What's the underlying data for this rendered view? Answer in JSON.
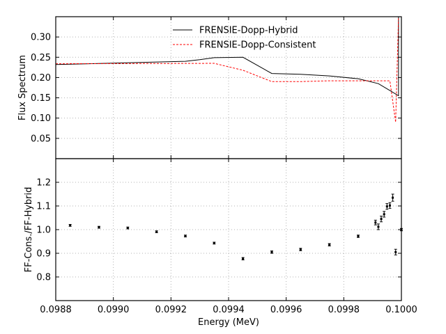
{
  "chart_data": [
    {
      "type": "line",
      "ylabel": "Flux Spectrum",
      "xlim": [
        0.0988,
        0.1
      ],
      "ylim": [
        0.0,
        0.35
      ],
      "yticks": [
        0.05,
        0.1,
        0.15,
        0.2,
        0.25,
        0.3
      ],
      "ytick_labels": [
        "0.05",
        "0.10",
        "0.15",
        "0.20",
        "0.25",
        "0.30"
      ],
      "grid": true,
      "legend_position": "top-center",
      "series": [
        {
          "name": "FRENSIE-Dopp-Hybrid",
          "color": "#000000",
          "style": "solid",
          "x": [
            0.0988,
            0.09925,
            0.0993,
            0.09935,
            0.09945,
            0.09955,
            0.09965,
            0.09975,
            0.09985,
            0.09992,
            0.09996,
            0.09999,
            0.09999,
            0.1
          ],
          "y": [
            0.232,
            0.24,
            0.244,
            0.249,
            0.25,
            0.21,
            0.208,
            0.204,
            0.197,
            0.185,
            0.168,
            0.155,
            0.35,
            0.35
          ]
        },
        {
          "name": "FRENSIE-Dopp-Consistent",
          "color": "#ff0000",
          "style": "dashed",
          "x": [
            0.0988,
            0.09935,
            0.09945,
            0.09955,
            0.09965,
            0.09975,
            0.09985,
            0.09992,
            0.09996,
            0.09998,
            0.09999,
            0.1
          ],
          "y": [
            0.234,
            0.235,
            0.218,
            0.19,
            0.19,
            0.192,
            0.192,
            0.192,
            0.192,
            0.09,
            0.35,
            0.35
          ]
        }
      ]
    },
    {
      "type": "scatter",
      "xlabel": "Energy (MeV)",
      "ylabel": "FF-Cons./FF-Hybrid",
      "xlim": [
        0.0988,
        0.1
      ],
      "ylim": [
        0.7,
        1.3
      ],
      "xticks": [
        0.0988,
        0.099,
        0.0992,
        0.0994,
        0.0996,
        0.0998,
        0.1
      ],
      "xtick_labels": [
        "0.0988",
        "0.0990",
        "0.0992",
        "0.0994",
        "0.0996",
        "0.0998",
        "0.1000"
      ],
      "yticks": [
        0.8,
        0.9,
        1.0,
        1.1,
        1.2
      ],
      "ytick_labels": [
        "0.8",
        "0.9",
        "1.0",
        "1.1",
        "1.2"
      ],
      "grid": true,
      "points": [
        {
          "x": 0.09885,
          "y": 1.018,
          "err": 0.004
        },
        {
          "x": 0.09895,
          "y": 1.01,
          "err": 0.004
        },
        {
          "x": 0.09905,
          "y": 1.007,
          "err": 0.004
        },
        {
          "x": 0.09915,
          "y": 0.991,
          "err": 0.004
        },
        {
          "x": 0.09925,
          "y": 0.973,
          "err": 0.004
        },
        {
          "x": 0.09935,
          "y": 0.943,
          "err": 0.004
        },
        {
          "x": 0.09945,
          "y": 0.877,
          "err": 0.005
        },
        {
          "x": 0.09955,
          "y": 0.905,
          "err": 0.005
        },
        {
          "x": 0.09965,
          "y": 0.916,
          "err": 0.005
        },
        {
          "x": 0.09975,
          "y": 0.936,
          "err": 0.005
        },
        {
          "x": 0.09985,
          "y": 0.972,
          "err": 0.005
        },
        {
          "x": 0.09991,
          "y": 1.03,
          "err": 0.01
        },
        {
          "x": 0.09992,
          "y": 1.012,
          "err": 0.012
        },
        {
          "x": 0.09993,
          "y": 1.045,
          "err": 0.012
        },
        {
          "x": 0.09994,
          "y": 1.065,
          "err": 0.012
        },
        {
          "x": 0.09995,
          "y": 1.098,
          "err": 0.012
        },
        {
          "x": 0.09996,
          "y": 1.102,
          "err": 0.012
        },
        {
          "x": 0.09997,
          "y": 1.135,
          "err": 0.015
        },
        {
          "x": 0.09998,
          "y": 0.905,
          "err": 0.012
        },
        {
          "x": 0.1,
          "y": 1.0,
          "err": 0.005
        }
      ]
    }
  ]
}
